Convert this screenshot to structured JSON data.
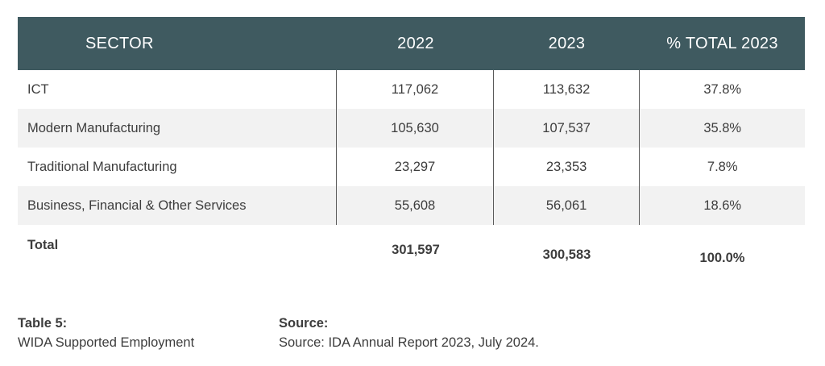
{
  "table": {
    "headers": [
      "SECTOR",
      "2022",
      "2023",
      "% TOTAL 2023"
    ],
    "rows": [
      [
        "ICT",
        "117,062",
        "113,632",
        "37.8%"
      ],
      [
        "Modern Manufacturing",
        "105,630",
        "107,537",
        "35.8%"
      ],
      [
        "Traditional Manufacturing",
        "23,297",
        "23,353",
        "7.8%"
      ],
      [
        "Business, Financial & Other Services",
        "55,608",
        "56,061",
        "18.6%"
      ]
    ],
    "total": [
      "Total",
      "301,597",
      "300,583",
      "100.0%"
    ],
    "header_color": "#3f5a60",
    "alt_row_color": "#f2f2f2"
  },
  "caption": {
    "label": "Table 5:",
    "text": "WIDA Supported Employment"
  },
  "source": {
    "label": "Source:",
    "text": "Source: IDA Annual Report 2023, July 2024."
  }
}
